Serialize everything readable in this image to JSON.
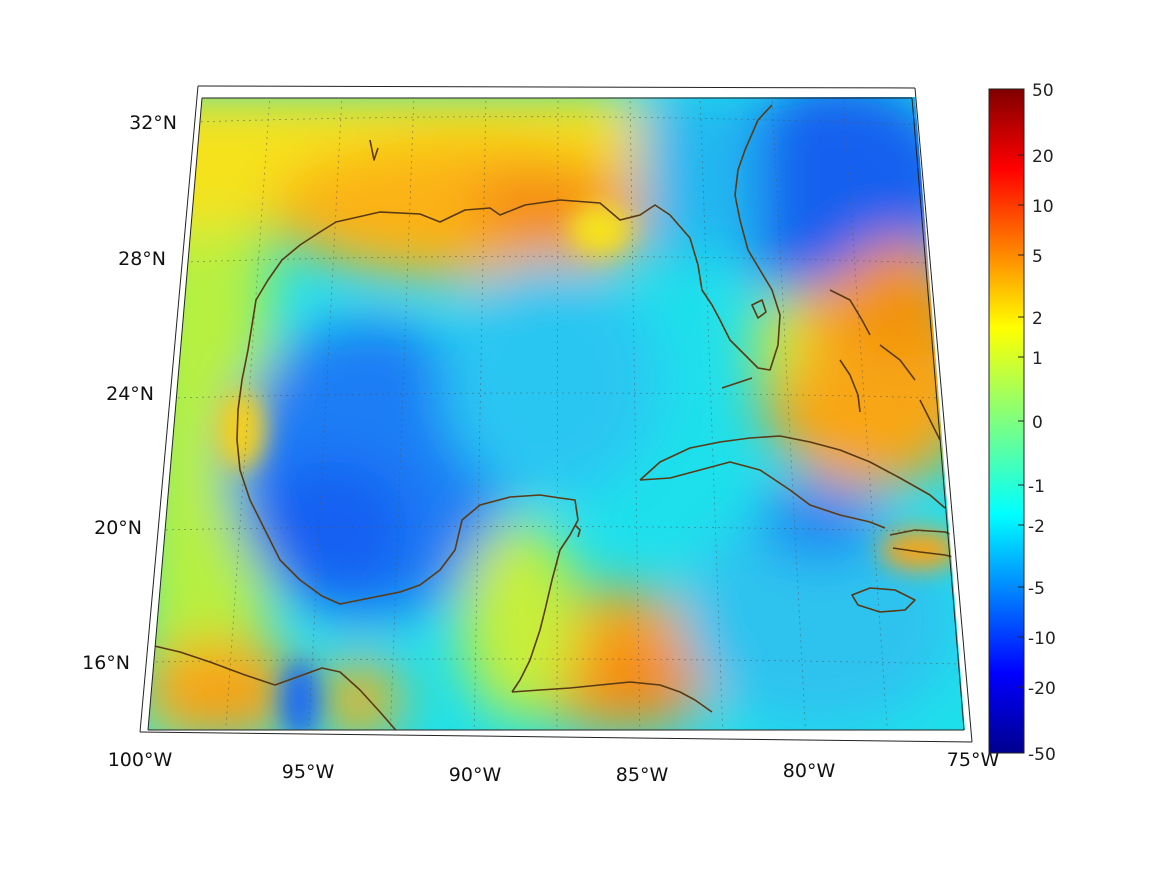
{
  "map": {
    "lat_labels": [
      "32°N",
      "28°N",
      "24°N",
      "20°N",
      "16°N"
    ],
    "lon_labels": [
      "100°W",
      "95°W",
      "90°W",
      "85°W",
      "80°W",
      "75°W"
    ],
    "colorbar": {
      "ticks": [
        "50",
        "20",
        "10",
        "5",
        "2",
        "1",
        "0",
        "-1",
        "-2",
        "-5",
        "-10",
        "-20",
        "-50"
      ],
      "scale": "symmetric-log",
      "colormap": "jet"
    },
    "colors": {
      "coastline": "#5a3a14",
      "frame": "#222222",
      "grid": "#555555"
    },
    "extent": {
      "lon": [
        -100,
        -75
      ],
      "lat": [
        14,
        33
      ]
    }
  }
}
